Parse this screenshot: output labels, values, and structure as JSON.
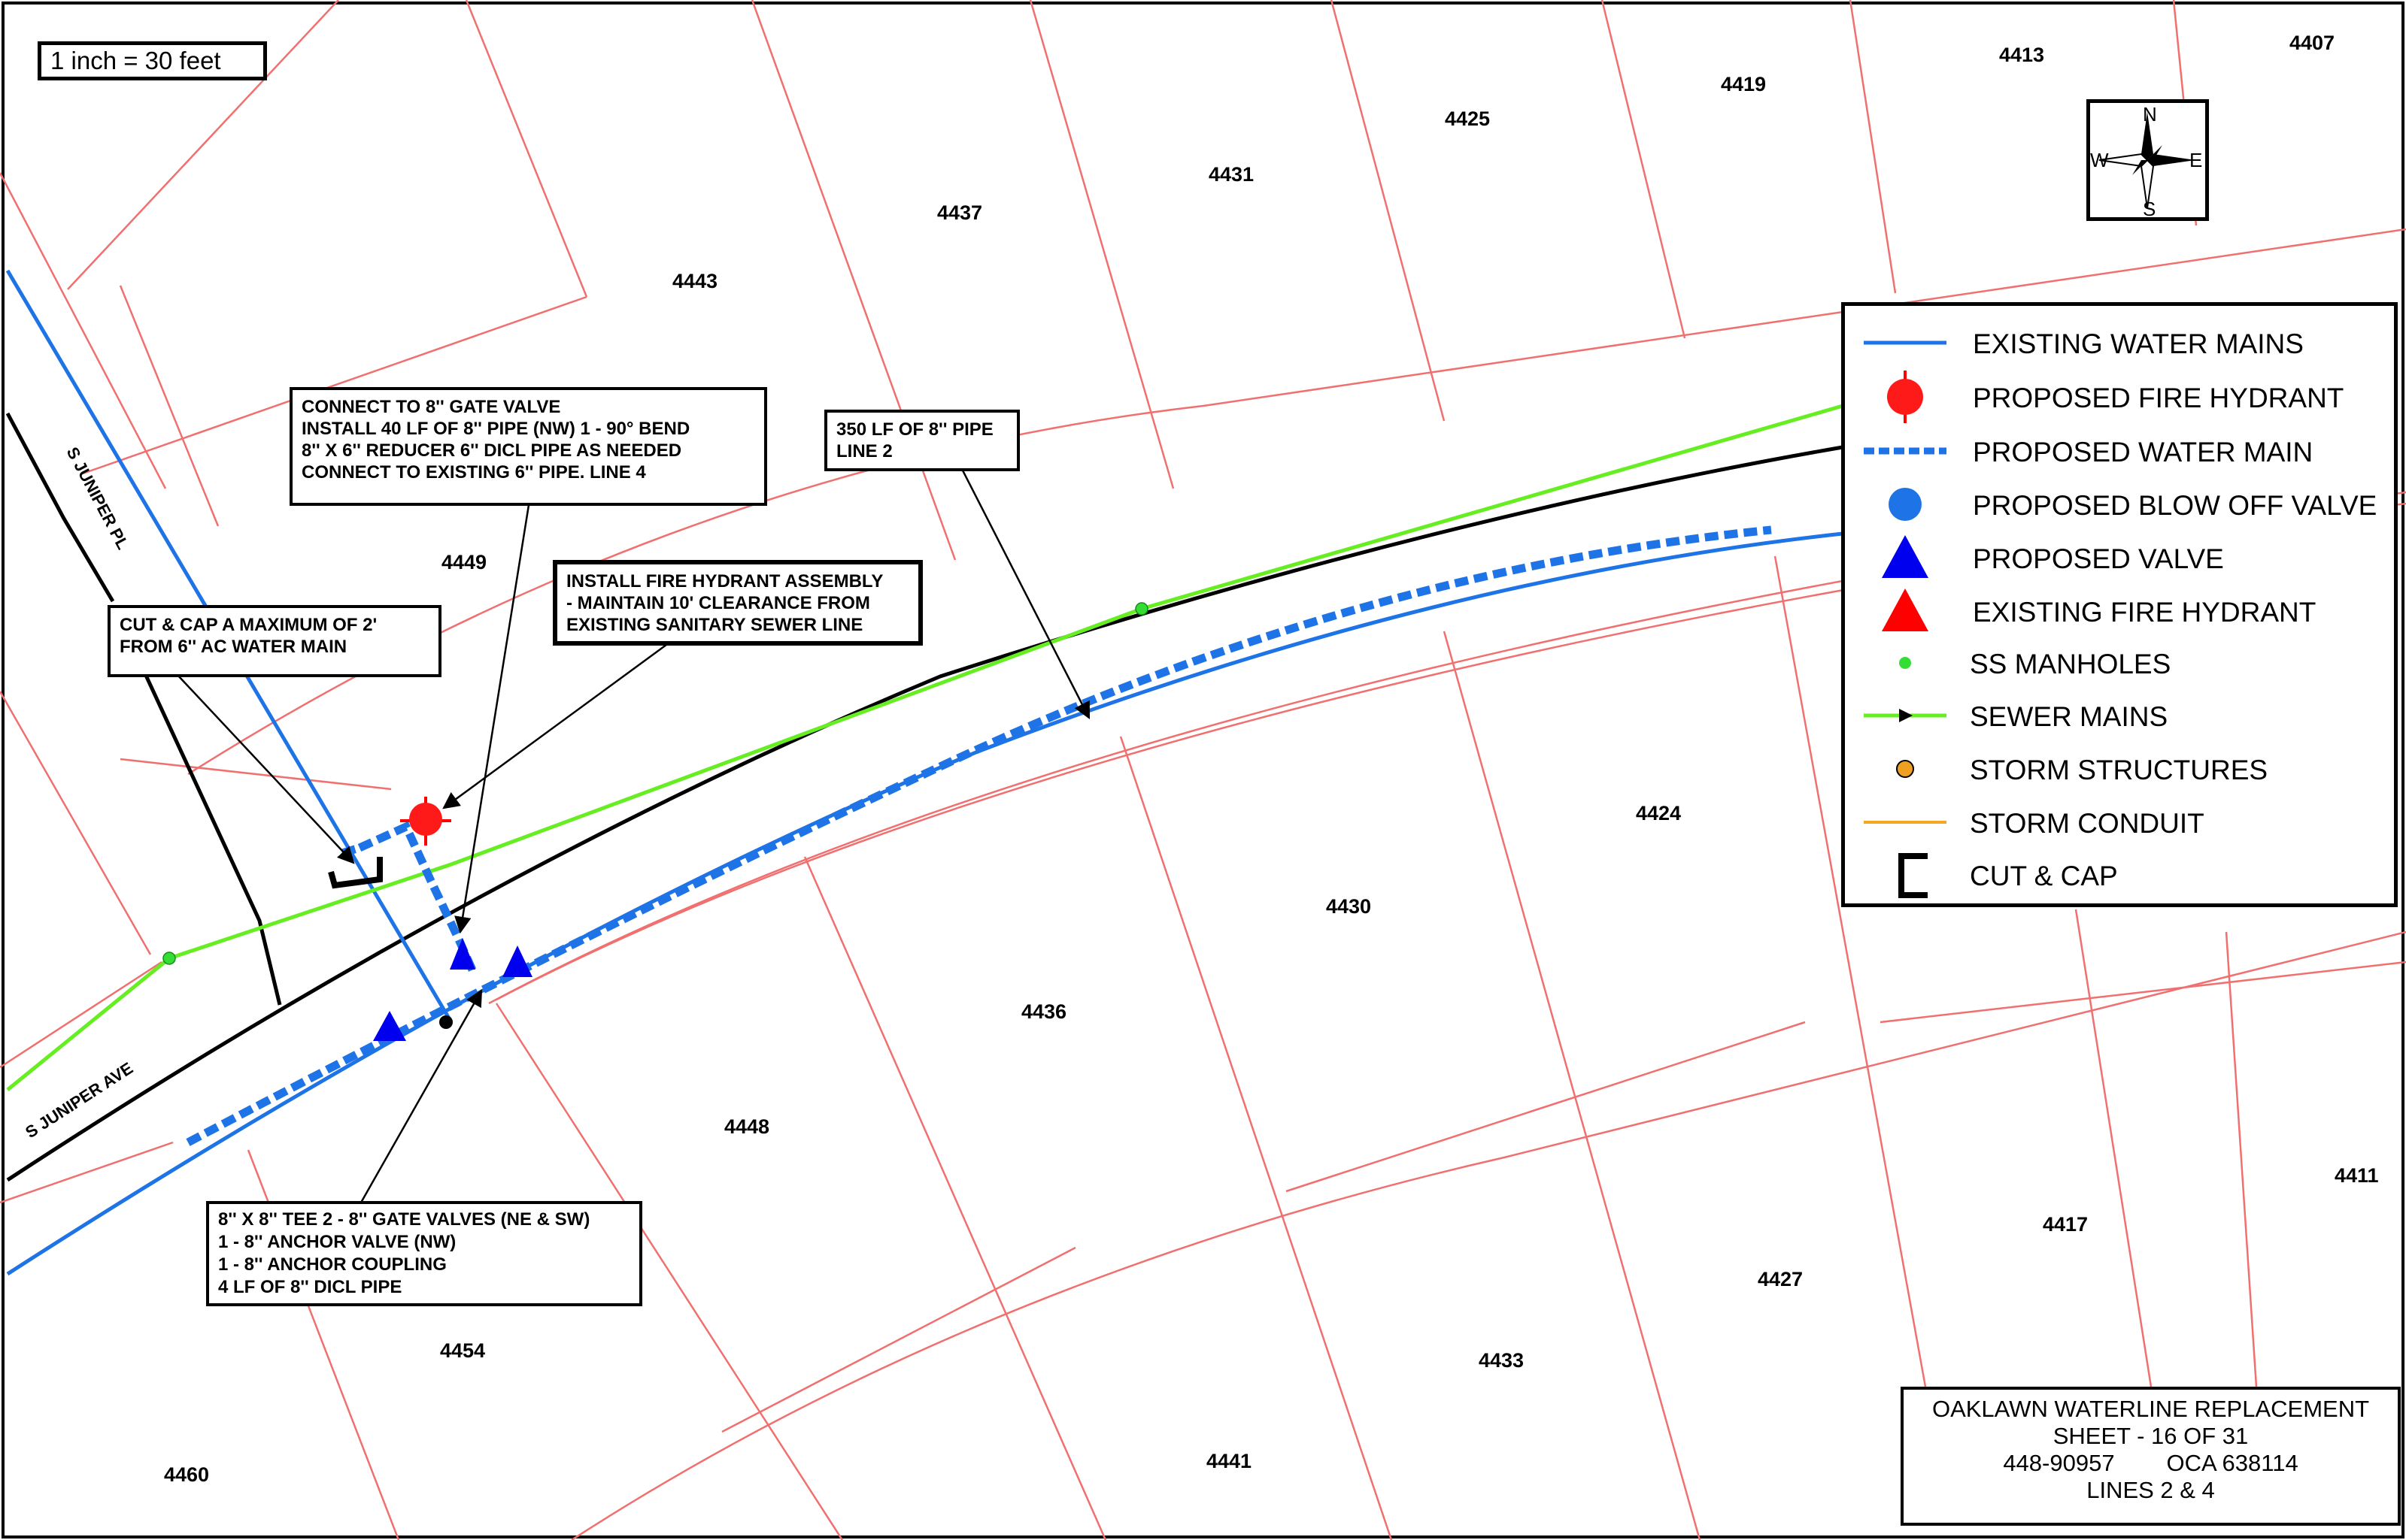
{
  "scale": "1 inch = 30 feet",
  "compass": {
    "n": "N",
    "s": "S",
    "e": "E",
    "w": "W"
  },
  "streets": {
    "juniper_pl": "S JUNIPER PL",
    "juniper_ave": "S JUNIPER AVE"
  },
  "lots": [
    {
      "id": "4407",
      "text": "4407"
    },
    {
      "id": "4413",
      "text": "4413"
    },
    {
      "id": "4419",
      "text": "4419"
    },
    {
      "id": "4425",
      "text": "4425"
    },
    {
      "id": "4431",
      "text": "4431"
    },
    {
      "id": "4437",
      "text": "4437"
    },
    {
      "id": "4443",
      "text": "4443"
    },
    {
      "id": "4449",
      "text": "4449"
    },
    {
      "id": "4424",
      "text": "4424"
    },
    {
      "id": "4430",
      "text": "4430"
    },
    {
      "id": "4436",
      "text": "4436"
    },
    {
      "id": "4448",
      "text": "4448"
    },
    {
      "id": "4454",
      "text": "4454"
    },
    {
      "id": "4460",
      "text": "4460"
    },
    {
      "id": "4441",
      "text": "4441"
    },
    {
      "id": "4433",
      "text": "4433"
    },
    {
      "id": "4427",
      "text": "4427"
    },
    {
      "id": "4417",
      "text": "4417"
    },
    {
      "id": "4411",
      "text": "4411"
    }
  ],
  "notes": {
    "connect_gate_valve": [
      "CONNECT TO 8'' GATE VALVE",
      "INSTALL 40 LF OF 8'' PIPE (NW) 1 - 90° BEND",
      "8'' X 6'' REDUCER 6'' DICL PIPE AS NEEDED",
      "CONNECT TO EXISTING 6'' PIPE. LINE 4"
    ],
    "pipe_350": [
      "350 LF OF 8'' PIPE",
      "LINE 2"
    ],
    "fire_hydrant": [
      "INSTALL FIRE HYDRANT ASSEMBLY",
      "- MAINTAIN 10' CLEARANCE FROM",
      "EXISTING SANITARY SEWER LINE"
    ],
    "cut_cap": [
      "CUT & CAP A MAXIMUM OF 2'",
      "FROM 6'' AC WATER MAIN"
    ],
    "tee": [
      "8'' X 8'' TEE 2 - 8'' GATE VALVES (NE & SW)",
      "1 - 8'' ANCHOR VALVE (NW)",
      "1 - 8'' ANCHOR COUPLING",
      "4 LF OF 8'' DICL PIPE"
    ]
  },
  "legend": [
    {
      "id": "existing-water-mains",
      "label": "EXISTING WATER MAINS",
      "color": "#1e74e6"
    },
    {
      "id": "proposed-fire-hydrant",
      "label": "PROPOSED FIRE HYDRANT",
      "color": "#ff0000"
    },
    {
      "id": "proposed-water-main",
      "label": "PROPOSED WATER MAIN",
      "color": "#1e74e6"
    },
    {
      "id": "proposed-blow-off-valve",
      "label": "PROPOSED BLOW OFF VALVE",
      "color": "#1e74e6"
    },
    {
      "id": "proposed-valve",
      "label": "PROPOSED VALVE",
      "color": "#0000ee"
    },
    {
      "id": "existing-fire-hydrant",
      "label": "EXISTING FIRE HYDRANT",
      "color": "#ff0000"
    },
    {
      "id": "ss-manholes",
      "label": "SS MANHOLES",
      "color": "#33dd33"
    },
    {
      "id": "sewer-mains",
      "label": "SEWER MAINS",
      "color": "#66ee22"
    },
    {
      "id": "storm-structures",
      "label": "STORM STRUCTURES",
      "color": "#f0a020"
    },
    {
      "id": "storm-conduit",
      "label": "STORM CONDUIT",
      "color": "#f5a623"
    },
    {
      "id": "cut-cap",
      "label": "CUT & CAP",
      "color": "#000000"
    }
  ],
  "title_block": {
    "line1": "OAKLAWN WATERLINE REPLACEMENT",
    "line2": "SHEET  -  16 OF 31",
    "line3": "448-90957        OCA 638114",
    "line4": "LINES 2 & 4"
  }
}
